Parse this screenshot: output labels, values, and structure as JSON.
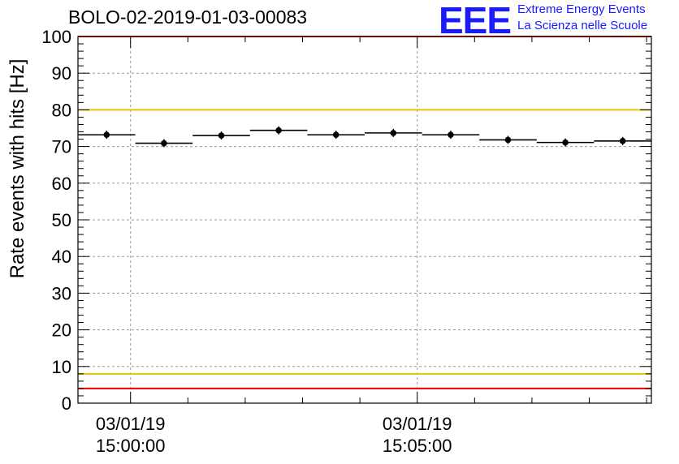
{
  "header": {
    "title": "BOLO-02-2019-01-03-00083",
    "logo_mark": "EEE",
    "logo_line1": "Extreme Energy Events",
    "logo_line2": "La Scienza nelle Scuole"
  },
  "colors": {
    "limit_red": "#ee0000",
    "limit_yellow": "#f0c000",
    "logo_blue": "#1a1aff",
    "grid": "#9a9a9a"
  },
  "chart_data": {
    "type": "scatter",
    "title": "BOLO-02-2019-01-03-00083",
    "ylabel": "Rate events with hits [Hz]",
    "xlabel": "",
    "ylim": [
      0,
      100
    ],
    "yticks": [
      0,
      10,
      20,
      30,
      40,
      50,
      60,
      70,
      80,
      90,
      100
    ],
    "xlim": [
      "14:59:05",
      "15:09:05"
    ],
    "xticks": [
      {
        "date": "03/01/19",
        "time": "15:00:00"
      },
      {
        "date": "03/01/19",
        "time": "15:05:00"
      }
    ],
    "grid": true,
    "points": [
      {
        "x_start": "14:59:05",
        "x_end": "15:00:05",
        "y": 73.2
      },
      {
        "x_start": "15:00:05",
        "x_end": "15:01:05",
        "y": 70.9
      },
      {
        "x_start": "15:01:05",
        "x_end": "15:02:05",
        "y": 73.0
      },
      {
        "x_start": "15:02:05",
        "x_end": "15:03:05",
        "y": 74.4
      },
      {
        "x_start": "15:03:05",
        "x_end": "15:04:05",
        "y": 73.2
      },
      {
        "x_start": "15:04:05",
        "x_end": "15:05:05",
        "y": 73.7
      },
      {
        "x_start": "15:05:05",
        "x_end": "15:06:05",
        "y": 73.2
      },
      {
        "x_start": "15:06:05",
        "x_end": "15:07:05",
        "y": 71.8
      },
      {
        "x_start": "15:07:05",
        "x_end": "15:08:05",
        "y": 71.1
      },
      {
        "x_start": "15:08:05",
        "x_end": "15:09:05",
        "y": 71.5
      }
    ],
    "reference_lines": [
      {
        "y": 100,
        "color": "#ee0000"
      },
      {
        "y": 80,
        "color": "#f0c000"
      },
      {
        "y": 8,
        "color": "#f0c000"
      },
      {
        "y": 4,
        "color": "#ee0000"
      }
    ]
  }
}
